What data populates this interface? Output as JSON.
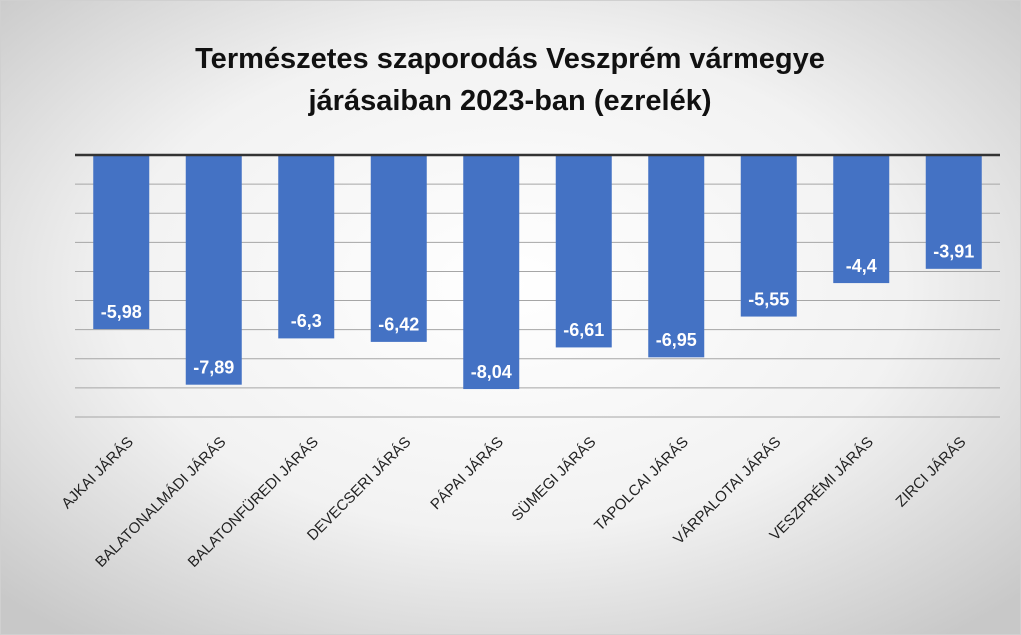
{
  "chart_data": {
    "type": "bar",
    "title": "Természetes szaporodás Veszprém vármegye járásaiban 2023-ban (ezrelék)",
    "categories": [
      "AJKAI JÁRÁS",
      "BALATONALMÁDI JÁRÁS",
      "BALATONFÜREDI JÁRÁS",
      "DEVECSERI JÁRÁS",
      "PÁPAI JÁRÁS",
      "SÜMEGI JÁRÁS",
      "TAPOLCAI JÁRÁS",
      "VÁRPALOTAI JÁRÁS",
      "VESZPRÉMI JÁRÁS",
      "ZIRCI JÁRÁS"
    ],
    "values": [
      -5.98,
      -7.89,
      -6.3,
      -6.42,
      -8.04,
      -6.61,
      -6.95,
      -5.55,
      -4.4,
      -3.91
    ],
    "value_labels": [
      "-5,98",
      "-7,89",
      "-6,3",
      "-6,42",
      "-8,04",
      "-6,61",
      "-6,95",
      "-5,55",
      "-4,4",
      "-3,91"
    ],
    "color": "#4472c4",
    "ylim": [
      -9,
      0
    ],
    "yticks": [
      0,
      -1,
      -2,
      -3,
      -4,
      -5,
      -6,
      -7,
      -8,
      -9
    ],
    "grid": true
  }
}
